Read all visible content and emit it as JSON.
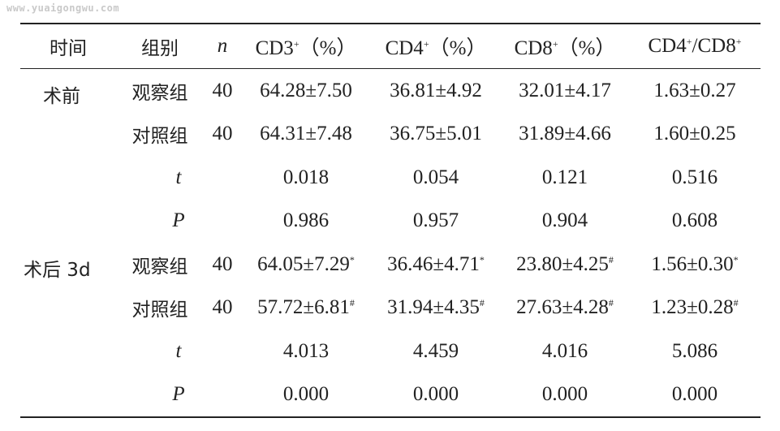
{
  "watermark": "www.yuaigongwu.com",
  "header": {
    "time": "时间",
    "group": "组别",
    "n": "n",
    "cd3_base": "CD3",
    "cd3_sup": "+",
    "cd3_unit": "（%）",
    "cd4_base": "CD4",
    "cd4_sup": "+",
    "cd4_unit": "（%）",
    "cd8_base": "CD8",
    "cd8_sup": "+",
    "cd8_unit": "（%）",
    "ratio_a": "CD4",
    "ratio_a_sup": "+",
    "ratio_sep": "/CD8",
    "ratio_b_sup": "+"
  },
  "sections": [
    {
      "time": "术前",
      "rows": [
        {
          "group": "观察组",
          "n": "40",
          "cd3": "64.28±7.50",
          "cd3_mark": "",
          "cd4": "36.81±4.92",
          "cd4_mark": "",
          "cd8": "32.01±4.17",
          "cd8_mark": "",
          "ratio": "1.63±0.27",
          "ratio_mark": ""
        },
        {
          "group": "对照组",
          "n": "40",
          "cd3": "64.31±7.48",
          "cd3_mark": "",
          "cd4": "36.75±5.01",
          "cd4_mark": "",
          "cd8": "31.89±4.66",
          "cd8_mark": "",
          "ratio": "1.60±0.25",
          "ratio_mark": ""
        }
      ],
      "t": {
        "label": "t",
        "cd3": "0.018",
        "cd4": "0.054",
        "cd8": "0.121",
        "ratio": "0.516"
      },
      "p": {
        "label": "P",
        "cd3": "0.986",
        "cd4": "0.957",
        "cd8": "0.904",
        "ratio": "0.608"
      }
    },
    {
      "time": "术后 3d",
      "rows": [
        {
          "group": "观察组",
          "n": "40",
          "cd3": "64.05±7.29",
          "cd3_mark": "*",
          "cd4": "36.46±4.71",
          "cd4_mark": "*",
          "cd8": "23.80±4.25",
          "cd8_mark": "#",
          "ratio": "1.56±0.30",
          "ratio_mark": "*"
        },
        {
          "group": "对照组",
          "n": "40",
          "cd3": "57.72±6.81",
          "cd3_mark": "#",
          "cd4": "31.94±4.35",
          "cd4_mark": "#",
          "cd8": "27.63±4.28",
          "cd8_mark": "#",
          "ratio": "1.23±0.28",
          "ratio_mark": "#"
        }
      ],
      "t": {
        "label": "t",
        "cd3": "4.013",
        "cd4": "4.459",
        "cd8": "4.016",
        "ratio": "5.086"
      },
      "p": {
        "label": "P",
        "cd3": "0.000",
        "cd4": "0.000",
        "cd8": "0.000",
        "ratio": "0.000"
      }
    }
  ]
}
